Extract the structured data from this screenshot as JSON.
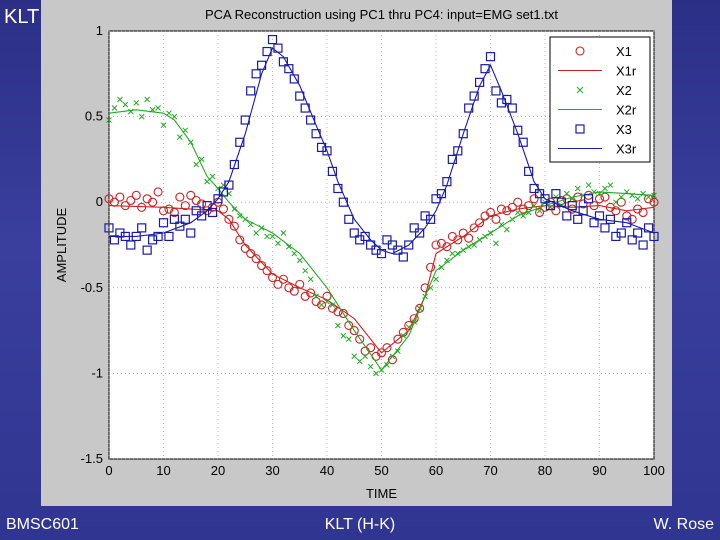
{
  "slide": {
    "title": "KLT",
    "footer_left": "BMSC601",
    "footer_center": "KLT (H-K)",
    "footer_right": "W. Rose"
  },
  "colors": {
    "background": "#2e338f",
    "panel": "#c8c8c8",
    "plot_bg": "#ffffff",
    "x1": "#cc2222",
    "x2": "#22aa22",
    "x3": "#1a1aaa"
  },
  "chart_data": {
    "type": "line",
    "title": "PCA Reconstruction using PC1 thru PC4: input=EMG set1.txt",
    "xlabel": "TIME",
    "ylabel": "AMPLITUDE",
    "xlim": [
      0,
      100
    ],
    "ylim": [
      -1.5,
      1
    ],
    "xticks": [
      0,
      10,
      20,
      30,
      40,
      50,
      60,
      70,
      80,
      90,
      100
    ],
    "yticks": [
      1,
      0.5,
      0,
      -0.5,
      -1,
      -1.5
    ],
    "grid": true,
    "legend_position": "top-right",
    "series": [
      {
        "name": "X1",
        "style": "markers",
        "marker": "circle",
        "color": "#cc2222",
        "x": [
          0,
          1,
          2,
          3,
          4,
          5,
          6,
          7,
          8,
          9,
          10,
          11,
          12,
          13,
          14,
          15,
          16,
          17,
          18,
          19,
          20,
          21,
          22,
          23,
          24,
          25,
          26,
          27,
          28,
          29,
          30,
          31,
          32,
          33,
          34,
          35,
          36,
          37,
          38,
          39,
          40,
          41,
          42,
          43,
          44,
          45,
          46,
          47,
          48,
          49,
          50,
          51,
          52,
          53,
          54,
          55,
          56,
          57,
          58,
          59,
          60,
          61,
          62,
          63,
          64,
          65,
          66,
          67,
          68,
          69,
          70,
          71,
          72,
          73,
          74,
          75,
          76,
          77,
          78,
          79,
          80,
          81,
          82,
          83,
          84,
          85,
          86,
          87,
          88,
          89,
          90,
          91,
          92,
          93,
          94,
          95,
          96,
          97,
          98,
          99,
          100
        ],
        "y": [
          0.02,
          0.0,
          0.03,
          -0.02,
          0.01,
          0.04,
          -0.03,
          0.02,
          0.0,
          0.06,
          -0.05,
          -0.04,
          -0.06,
          0.03,
          -0.02,
          0.04,
          0.01,
          -0.01,
          -0.05,
          -0.03,
          0.0,
          -0.04,
          -0.1,
          -0.14,
          -0.22,
          -0.27,
          -0.3,
          -0.33,
          -0.37,
          -0.4,
          -0.44,
          -0.48,
          -0.45,
          -0.5,
          -0.52,
          -0.48,
          -0.55,
          -0.53,
          -0.58,
          -0.6,
          -0.55,
          -0.62,
          -0.64,
          -0.65,
          -0.72,
          -0.75,
          -0.8,
          -0.87,
          -0.85,
          -0.9,
          -0.88,
          -0.85,
          -0.92,
          -0.8,
          -0.76,
          -0.72,
          -0.68,
          -0.62,
          -0.5,
          -0.38,
          -0.25,
          -0.24,
          -0.26,
          -0.2,
          -0.22,
          -0.18,
          -0.21,
          -0.15,
          -0.12,
          -0.08,
          -0.06,
          -0.1,
          -0.04,
          -0.05,
          -0.03,
          0.0,
          -0.04,
          -0.02,
          0.02,
          -0.06,
          -0.03,
          0.0,
          -0.05,
          0.01,
          0.02,
          -0.04,
          0.03,
          -0.01,
          0.04,
          -0.02,
          0.02,
          0.03,
          -0.03,
          -0.05,
          0.0,
          -0.08,
          -0.1,
          -0.04,
          -0.06,
          0.02,
          0.0
        ]
      },
      {
        "name": "X1r",
        "style": "line",
        "color": "#cc2222",
        "x": [
          0,
          10,
          20,
          22,
          25,
          30,
          35,
          40,
          45,
          50,
          55,
          58,
          60,
          65,
          70,
          75,
          80,
          85,
          90,
          95,
          100
        ],
        "y": [
          -0.02,
          -0.03,
          -0.05,
          -0.1,
          -0.25,
          -0.42,
          -0.5,
          -0.57,
          -0.68,
          -0.88,
          -0.75,
          -0.55,
          -0.3,
          -0.2,
          -0.08,
          -0.04,
          -0.02,
          -0.03,
          -0.02,
          -0.05,
          -0.03
        ]
      },
      {
        "name": "X2",
        "style": "markers",
        "marker": "x",
        "color": "#22aa22",
        "x": [
          0,
          1,
          2,
          3,
          4,
          5,
          6,
          7,
          8,
          9,
          10,
          11,
          12,
          13,
          14,
          15,
          16,
          17,
          18,
          19,
          20,
          21,
          22,
          23,
          24,
          25,
          26,
          27,
          28,
          29,
          30,
          31,
          32,
          33,
          34,
          35,
          36,
          37,
          38,
          39,
          40,
          41,
          42,
          43,
          44,
          45,
          46,
          47,
          48,
          49,
          50,
          51,
          52,
          53,
          54,
          55,
          56,
          57,
          58,
          59,
          60,
          61,
          62,
          63,
          64,
          65,
          66,
          67,
          68,
          69,
          70,
          71,
          72,
          73,
          74,
          75,
          76,
          77,
          78,
          79,
          80,
          81,
          82,
          83,
          84,
          85,
          86,
          87,
          88,
          89,
          90,
          91,
          92,
          93,
          94,
          95,
          96,
          97,
          98,
          99,
          100
        ],
        "y": [
          0.48,
          0.55,
          0.6,
          0.57,
          0.53,
          0.58,
          0.5,
          0.6,
          0.54,
          0.55,
          0.45,
          0.52,
          0.5,
          0.38,
          0.42,
          0.35,
          0.22,
          0.25,
          0.12,
          0.15,
          0.08,
          0.1,
          0.05,
          -0.04,
          -0.08,
          -0.1,
          -0.13,
          -0.18,
          -0.15,
          -0.2,
          -0.2,
          -0.24,
          -0.18,
          -0.26,
          -0.3,
          -0.34,
          -0.4,
          -0.45,
          -0.55,
          -0.6,
          -0.58,
          -0.6,
          -0.72,
          -0.78,
          -0.8,
          -0.9,
          -0.93,
          -0.9,
          -0.96,
          -1.0,
          -0.98,
          -0.95,
          -0.9,
          -0.87,
          -0.78,
          -0.73,
          -0.7,
          -0.62,
          -0.55,
          -0.5,
          -0.45,
          -0.38,
          -0.34,
          -0.3,
          -0.3,
          -0.28,
          -0.26,
          -0.25,
          -0.22,
          -0.2,
          -0.18,
          -0.24,
          -0.13,
          -0.16,
          -0.1,
          -0.06,
          -0.08,
          -0.06,
          -0.02,
          -0.05,
          0.0,
          -0.03,
          0.03,
          -0.02,
          0.05,
          0.02,
          0.08,
          0.04,
          0.1,
          0.06,
          0.05,
          0.08,
          0.1,
          0.0,
          0.03,
          0.06,
          0.04,
          0.02,
          0.05,
          0.03,
          0.04
        ]
      },
      {
        "name": "X2r",
        "style": "line",
        "color": "#22aa22",
        "x": [
          0,
          5,
          10,
          12,
          15,
          18,
          20,
          22,
          25,
          30,
          35,
          40,
          45,
          50,
          55,
          58,
          60,
          65,
          70,
          75,
          80,
          85,
          90,
          95,
          100
        ],
        "y": [
          0.52,
          0.54,
          0.52,
          0.48,
          0.35,
          0.15,
          0.08,
          0.0,
          -0.1,
          -0.18,
          -0.3,
          -0.5,
          -0.75,
          -0.98,
          -0.78,
          -0.55,
          -0.4,
          -0.28,
          -0.18,
          -0.08,
          -0.02,
          0.03,
          0.06,
          0.05,
          0.04
        ]
      },
      {
        "name": "X3",
        "style": "markers",
        "marker": "square",
        "color": "#1a1aaa",
        "x": [
          0,
          1,
          2,
          3,
          4,
          5,
          6,
          7,
          8,
          9,
          10,
          11,
          12,
          13,
          14,
          15,
          16,
          17,
          18,
          19,
          20,
          21,
          22,
          23,
          24,
          25,
          26,
          27,
          28,
          29,
          30,
          31,
          32,
          33,
          34,
          35,
          36,
          37,
          38,
          39,
          40,
          41,
          42,
          43,
          44,
          45,
          46,
          47,
          48,
          49,
          50,
          51,
          52,
          53,
          54,
          55,
          56,
          57,
          58,
          59,
          60,
          61,
          62,
          63,
          64,
          65,
          66,
          67,
          68,
          69,
          70,
          71,
          72,
          73,
          74,
          75,
          76,
          77,
          78,
          79,
          80,
          81,
          82,
          83,
          84,
          85,
          86,
          87,
          88,
          89,
          90,
          91,
          92,
          93,
          94,
          95,
          96,
          97,
          98,
          99,
          100
        ],
        "y": [
          -0.15,
          -0.22,
          -0.18,
          -0.2,
          -0.25,
          -0.2,
          -0.15,
          -0.28,
          -0.22,
          -0.2,
          -0.12,
          -0.2,
          -0.1,
          -0.14,
          -0.1,
          -0.18,
          -0.05,
          -0.08,
          -0.02,
          -0.06,
          0.02,
          0.06,
          0.1,
          0.22,
          0.35,
          0.48,
          0.65,
          0.75,
          0.8,
          0.88,
          0.95,
          0.9,
          0.82,
          0.78,
          0.72,
          0.62,
          0.55,
          0.48,
          0.4,
          0.32,
          0.3,
          0.18,
          0.08,
          0.0,
          -0.1,
          -0.18,
          -0.22,
          -0.2,
          -0.25,
          -0.28,
          -0.3,
          -0.22,
          -0.25,
          -0.28,
          -0.32,
          -0.25,
          -0.15,
          -0.18,
          -0.08,
          -0.1,
          0.02,
          0.05,
          0.12,
          0.25,
          0.3,
          0.4,
          0.55,
          0.62,
          0.7,
          0.78,
          0.85,
          0.65,
          0.58,
          0.6,
          0.55,
          0.42,
          0.35,
          0.18,
          0.08,
          0.05,
          0.02,
          -0.02,
          0.05,
          0.0,
          -0.08,
          -0.02,
          -0.1,
          -0.05,
          0.02,
          -0.12,
          -0.08,
          -0.15,
          -0.1,
          -0.2,
          -0.18,
          -0.12,
          -0.22,
          -0.18,
          -0.25,
          -0.15,
          -0.2
        ]
      },
      {
        "name": "X3r",
        "style": "line",
        "color": "#1a1aaa",
        "x": [
          0,
          5,
          10,
          15,
          18,
          20,
          22,
          25,
          28,
          30,
          32,
          35,
          38,
          40,
          42,
          45,
          48,
          50,
          52,
          55,
          58,
          60,
          62,
          65,
          68,
          70,
          72,
          75,
          78,
          80,
          85,
          90,
          95,
          100
        ],
        "y": [
          -0.2,
          -0.2,
          -0.18,
          -0.12,
          -0.05,
          0.02,
          0.12,
          0.4,
          0.75,
          0.9,
          0.85,
          0.68,
          0.45,
          0.3,
          0.12,
          -0.1,
          -0.22,
          -0.28,
          -0.3,
          -0.25,
          -0.15,
          -0.05,
          0.1,
          0.4,
          0.68,
          0.8,
          0.65,
          0.4,
          0.12,
          0.02,
          -0.05,
          -0.1,
          -0.12,
          -0.18
        ]
      }
    ]
  }
}
